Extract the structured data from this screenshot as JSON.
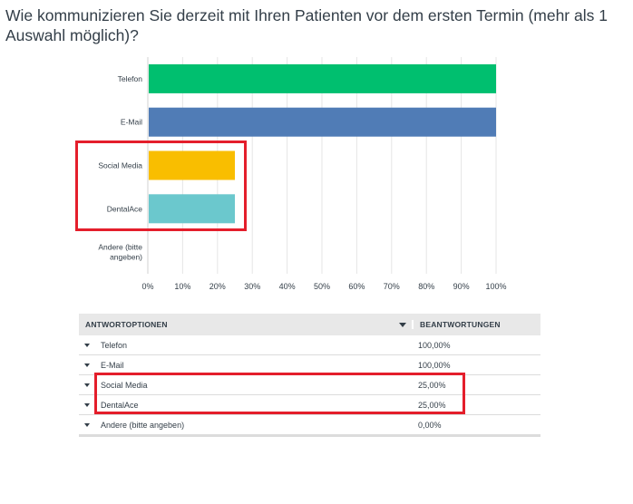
{
  "question": {
    "title": "Wie kommunizieren Sie derzeit mit Ihren Patienten vor dem ersten Termin (mehr als 1 Auswahl möglich)?"
  },
  "chart_data": {
    "type": "bar",
    "orientation": "horizontal",
    "categories": [
      "Telefon",
      "E-Mail",
      "Social Media",
      "DentalAce",
      "Andere (bitte angeben)"
    ],
    "values": [
      100,
      100,
      25,
      25,
      0
    ],
    "colors": [
      "#00bf6f",
      "#507cb6",
      "#f9be00",
      "#6bc8cd",
      "#cccccc"
    ],
    "x_ticks": [
      "0%",
      "10%",
      "20%",
      "30%",
      "40%",
      "50%",
      "60%",
      "70%",
      "80%",
      "90%",
      "100%"
    ],
    "xlim": [
      0,
      100
    ],
    "grid": true,
    "highlight_color": "#e41e2b"
  },
  "table": {
    "header_option": "ANTWORTOPTIONEN",
    "header_responses": "BEANTWORTUNGEN",
    "rows": [
      {
        "option": "Telefon",
        "value": "100,00%"
      },
      {
        "option": "E-Mail",
        "value": "100,00%"
      },
      {
        "option": "Social Media",
        "value": "25,00%"
      },
      {
        "option": "DentalAce",
        "value": "25,00%"
      },
      {
        "option": "Andere (bitte angeben)",
        "value": "0,00%"
      }
    ]
  }
}
